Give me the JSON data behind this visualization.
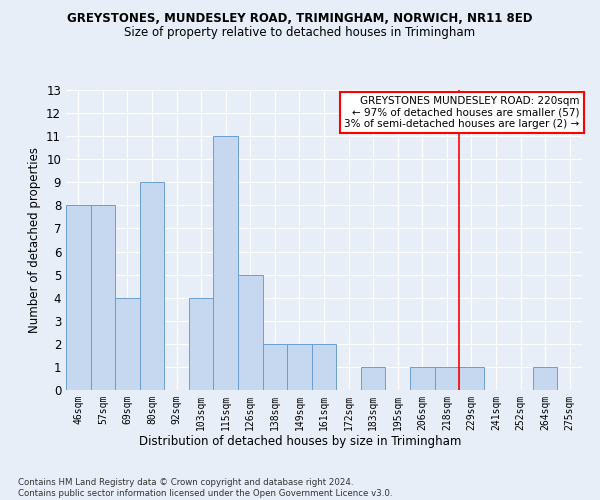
{
  "title1": "GREYSTONES, MUNDESLEY ROAD, TRIMINGHAM, NORWICH, NR11 8ED",
  "title2": "Size of property relative to detached houses in Trimingham",
  "xlabel": "Distribution of detached houses by size in Trimingham",
  "ylabel": "Number of detached properties",
  "footer": "Contains HM Land Registry data © Crown copyright and database right 2024.\nContains public sector information licensed under the Open Government Licence v3.0.",
  "bins": [
    "46sqm",
    "57sqm",
    "69sqm",
    "80sqm",
    "92sqm",
    "103sqm",
    "115sqm",
    "126sqm",
    "138sqm",
    "149sqm",
    "161sqm",
    "172sqm",
    "183sqm",
    "195sqm",
    "206sqm",
    "218sqm",
    "229sqm",
    "241sqm",
    "252sqm",
    "264sqm",
    "275sqm"
  ],
  "values": [
    8,
    8,
    4,
    9,
    0,
    4,
    11,
    5,
    2,
    2,
    2,
    0,
    1,
    0,
    1,
    1,
    1,
    0,
    0,
    1,
    0
  ],
  "bar_color": "#c5d8f0",
  "bar_edge_color": "#6a9fd0",
  "vline_color": "red",
  "vline_x_index": 15.5,
  "annotation_title": "GREYSTONES MUNDESLEY ROAD: 220sqm",
  "annotation_line1": "← 97% of detached houses are smaller (57)",
  "annotation_line2": "3% of semi-detached houses are larger (2) →",
  "annotation_box_color": "white",
  "annotation_box_edge": "red",
  "ylim": [
    0,
    13
  ],
  "yticks": [
    0,
    1,
    2,
    3,
    4,
    5,
    6,
    7,
    8,
    9,
    10,
    11,
    12,
    13
  ],
  "bg_color": "#e8eef8",
  "grid_color": "white",
  "title1_fontsize": 8.5,
  "title2_fontsize": 8.5
}
